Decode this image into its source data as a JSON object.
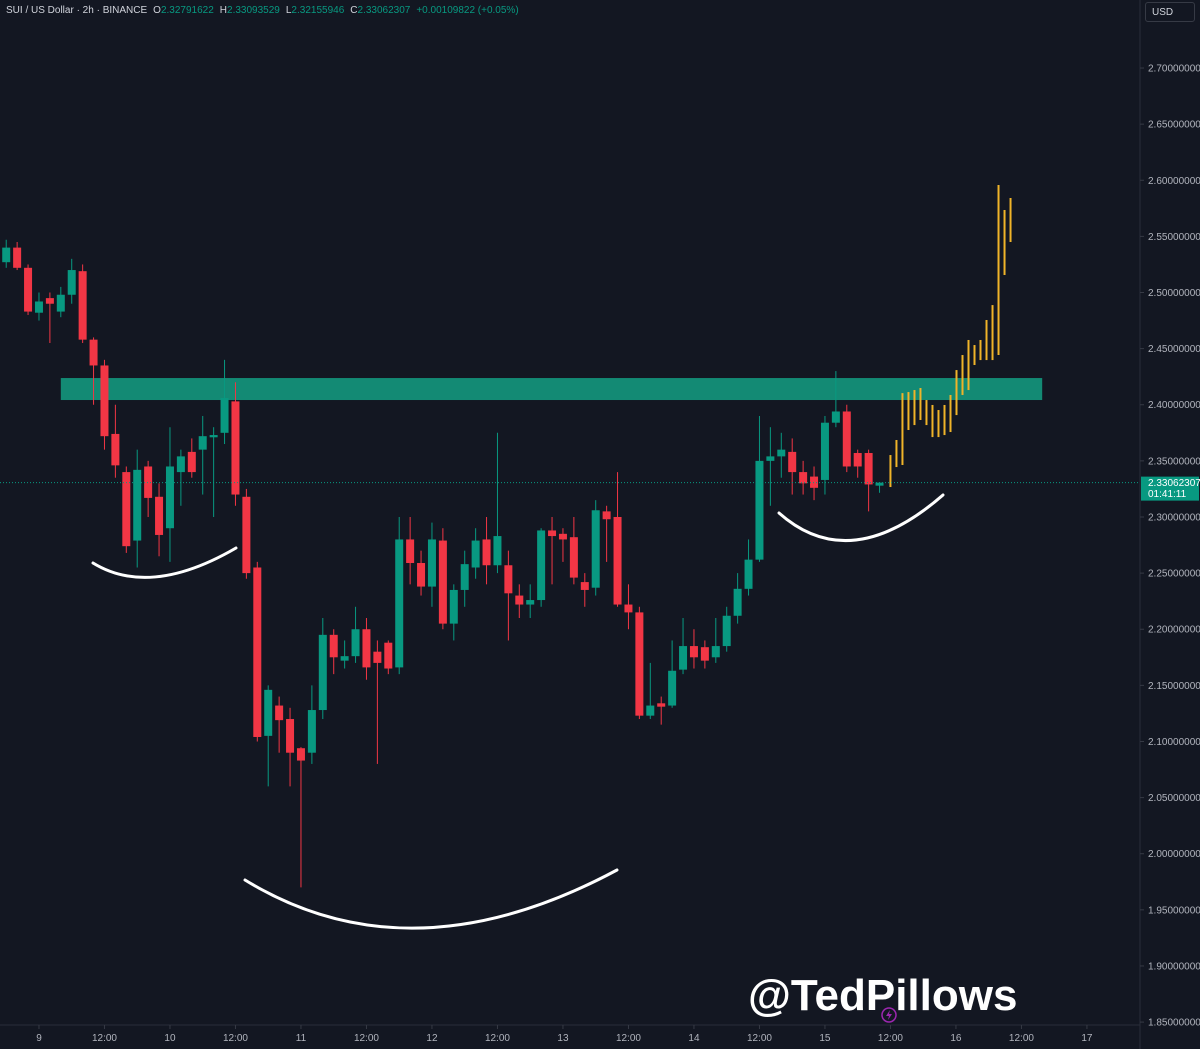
{
  "chart_data": {
    "type": "candlestick",
    "header": {
      "symbol": "SUI / US Dollar · 2h · BINANCE",
      "items": [
        {
          "label": "O",
          "value": "2.32791622"
        },
        {
          "label": "H",
          "value": "2.33093529"
        },
        {
          "label": "L",
          "value": "2.32155946"
        },
        {
          "label": "C",
          "value": "2.33062307"
        }
      ],
      "change": "+0.00109822 (+0.05%)"
    },
    "currency": "USD",
    "watermark": "@TedPillows",
    "up_color": "#089981",
    "down_color": "#f23645",
    "projection_color": "#f0b429",
    "zone_color": "#138a74",
    "grid": false,
    "open": [
      2.527,
      2.54,
      2.522,
      2.482,
      2.495,
      2.483,
      2.498,
      2.519,
      2.458,
      2.435,
      2.374,
      2.34,
      2.279,
      2.345,
      2.318,
      2.29,
      2.34,
      2.358,
      2.36,
      2.371,
      2.375,
      2.403,
      2.318,
      2.255,
      2.105,
      2.132,
      2.12,
      2.094,
      2.09,
      2.128,
      2.195,
      2.172,
      2.176,
      2.2,
      2.18,
      2.188,
      2.166,
      2.28,
      2.259,
      2.238,
      2.279,
      2.205,
      2.235,
      2.255,
      2.28,
      2.257,
      2.257,
      2.23,
      2.222,
      2.226,
      2.288,
      2.285,
      2.282,
      2.242,
      2.237,
      2.305,
      2.3,
      2.222,
      2.215,
      2.123,
      2.134,
      2.132,
      2.164,
      2.185,
      2.184,
      2.175,
      2.185,
      2.212,
      2.236,
      2.262,
      2.35,
      2.354,
      2.358,
      2.34,
      2.336,
      2.333,
      2.384,
      2.394,
      2.357,
      2.357,
      2.32791622
    ],
    "high": [
      2.547,
      2.545,
      2.525,
      2.5,
      2.5,
      2.505,
      2.53,
      2.525,
      2.46,
      2.44,
      2.4,
      2.345,
      2.36,
      2.35,
      2.33,
      2.38,
      2.36,
      2.37,
      2.39,
      2.38,
      2.44,
      2.42,
      2.325,
      2.26,
      2.15,
      2.14,
      2.13,
      2.095,
      2.15,
      2.21,
      2.2,
      2.19,
      2.22,
      2.21,
      2.19,
      2.19,
      2.3,
      2.3,
      2.27,
      2.295,
      2.29,
      2.24,
      2.27,
      2.29,
      2.3,
      2.375,
      2.27,
      2.24,
      2.24,
      2.29,
      2.3,
      2.29,
      2.3,
      2.25,
      2.315,
      2.31,
      2.34,
      2.24,
      2.22,
      2.17,
      2.14,
      2.19,
      2.21,
      2.2,
      2.19,
      2.21,
      2.22,
      2.25,
      2.28,
      2.39,
      2.38,
      2.375,
      2.37,
      2.35,
      2.345,
      2.39,
      2.43,
      2.4,
      2.36,
      2.36,
      2.33093529
    ],
    "low": [
      2.522,
      2.52,
      2.48,
      2.475,
      2.455,
      2.478,
      2.49,
      2.455,
      2.4,
      2.36,
      2.335,
      2.268,
      2.255,
      2.3,
      2.265,
      2.26,
      2.31,
      2.335,
      2.32,
      2.3,
      2.365,
      2.31,
      2.245,
      2.1,
      2.06,
      2.09,
      2.06,
      1.97,
      2.08,
      2.12,
      2.16,
      2.165,
      2.17,
      2.155,
      2.08,
      2.16,
      2.16,
      2.24,
      2.23,
      2.22,
      2.2,
      2.19,
      2.22,
      2.245,
      2.24,
      2.25,
      2.19,
      2.21,
      2.21,
      2.22,
      2.24,
      2.26,
      2.24,
      2.22,
      2.23,
      2.26,
      2.22,
      2.2,
      2.12,
      2.12,
      2.115,
      2.13,
      2.16,
      2.165,
      2.165,
      2.17,
      2.18,
      2.205,
      2.23,
      2.26,
      2.31,
      2.335,
      2.32,
      2.32,
      2.315,
      2.32,
      2.38,
      2.34,
      2.335,
      2.305,
      2.32155946
    ],
    "close": [
      2.54,
      2.522,
      2.483,
      2.492,
      2.49,
      2.498,
      2.52,
      2.458,
      2.435,
      2.372,
      2.346,
      2.274,
      2.342,
      2.317,
      2.284,
      2.345,
      2.354,
      2.34,
      2.372,
      2.373,
      2.406,
      2.32,
      2.25,
      2.104,
      2.146,
      2.119,
      2.09,
      2.083,
      2.128,
      2.195,
      2.175,
      2.176,
      2.2,
      2.166,
      2.17,
      2.165,
      2.28,
      2.259,
      2.238,
      2.28,
      2.205,
      2.235,
      2.258,
      2.279,
      2.257,
      2.283,
      2.232,
      2.222,
      2.226,
      2.288,
      2.283,
      2.28,
      2.246,
      2.235,
      2.306,
      2.298,
      2.222,
      2.215,
      2.123,
      2.132,
      2.131,
      2.163,
      2.185,
      2.175,
      2.172,
      2.185,
      2.212,
      2.236,
      2.262,
      2.35,
      2.354,
      2.36,
      2.34,
      2.33,
      2.326,
      2.384,
      2.394,
      2.345,
      2.345,
      2.329,
      2.33062307
    ],
    "projection": {
      "x": [
        81,
        81.55,
        82.1,
        82.65,
        83.2,
        83.75,
        84.3,
        84.85,
        85.4,
        85.95,
        86.5,
        87.05,
        87.6,
        88.15,
        88.7,
        89.25,
        89.8,
        90.35,
        90.9,
        91.45,
        92
      ],
      "high": [
        2.3552,
        2.3686,
        2.4104,
        2.4113,
        2.4131,
        2.4149,
        2.4042,
        2.3998,
        2.3953,
        2.3998,
        2.4087,
        2.4309,
        2.4443,
        2.4577,
        2.4532,
        2.4577,
        2.4755,
        2.4888,
        2.5958,
        2.5735,
        2.5842
      ],
      "low": [
        2.3267,
        2.3445,
        2.3463,
        2.3775,
        2.3819,
        2.3864,
        2.3819,
        2.3712,
        2.3712,
        2.373,
        2.3757,
        2.3908,
        2.4087,
        2.4131,
        2.4354,
        2.4398,
        2.4398,
        2.4398,
        2.4443,
        2.5156,
        2.545
      ]
    },
    "zone": {
      "x": [
        5,
        94.9
      ],
      "range": [
        2.4042,
        2.4238
      ]
    },
    "last_price": {
      "value": 2.33062307,
      "label": "2.33062307"
    },
    "countdown": "01:41:11",
    "xlim": [
      -0.57,
      103.86
    ],
    "xticks": [
      {
        "value": 3,
        "label": "9"
      },
      {
        "value": 9,
        "label": "12:00"
      },
      {
        "value": 15,
        "label": "10"
      },
      {
        "value": 21,
        "label": "12:00"
      },
      {
        "value": 27,
        "label": "11"
      },
      {
        "value": 33,
        "label": "12:00"
      },
      {
        "value": 39,
        "label": "12"
      },
      {
        "value": 45,
        "label": "12:00"
      },
      {
        "value": 51,
        "label": "13"
      },
      {
        "value": 57,
        "label": "12:00"
      },
      {
        "value": 63,
        "label": "14"
      },
      {
        "value": 69,
        "label": "12:00"
      },
      {
        "value": 75,
        "label": "15"
      },
      {
        "value": 81,
        "label": "12:00"
      },
      {
        "value": 87,
        "label": "16"
      },
      {
        "value": 93,
        "label": "12:00"
      },
      {
        "value": 99,
        "label": "17"
      }
    ],
    "ylim": [
      1.8474,
      2.7606
    ],
    "yticks": [
      {
        "value": 2.7,
        "label": "2.70000000"
      },
      {
        "value": 2.65,
        "label": "2.65000000"
      },
      {
        "value": 2.6,
        "label": "2.60000000"
      },
      {
        "value": 2.55,
        "label": "2.55000000"
      },
      {
        "value": 2.5,
        "label": "2.50000000"
      },
      {
        "value": 2.45,
        "label": "2.45000000"
      },
      {
        "value": 2.4,
        "label": "2.40000000"
      },
      {
        "value": 2.35,
        "label": "2.35000000"
      },
      {
        "value": 2.3,
        "label": "2.30000000"
      },
      {
        "value": 2.25,
        "label": "2.25000000"
      },
      {
        "value": 2.2,
        "label": "2.20000000"
      },
      {
        "value": 2.15,
        "label": "2.15000000"
      },
      {
        "value": 2.1,
        "label": "2.10000000"
      },
      {
        "value": 2.05,
        "label": "2.05000000"
      },
      {
        "value": 2.0,
        "label": "2.00000000"
      },
      {
        "value": 1.95,
        "label": "1.95000000"
      },
      {
        "value": 1.9,
        "label": "1.90000000"
      },
      {
        "value": 1.85,
        "label": "1.85000000"
      }
    ]
  }
}
